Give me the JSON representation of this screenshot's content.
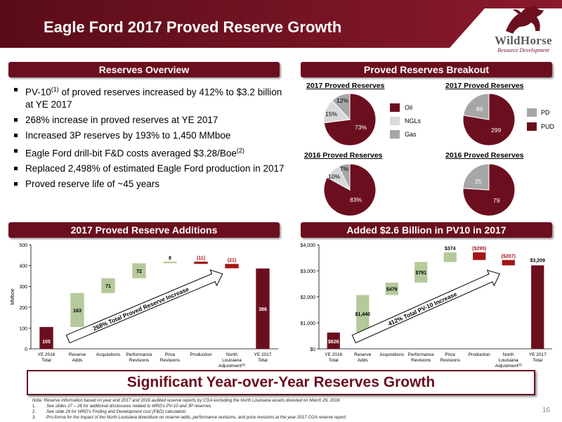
{
  "header": {
    "title": "Eagle Ford 2017 Proved Reserve Growth"
  },
  "logo": {
    "name": "WildHorse",
    "subtitle": "Resource Development"
  },
  "colors": {
    "brand": "#6b0f1e",
    "oil": "#6b0f1e",
    "ngl": "#d9d9d9",
    "gas": "#a6a6a6",
    "pd": "#a6a6a6",
    "pud": "#6b0f1e",
    "positive": "#b5c99a",
    "negative": "#a31515",
    "total": "#6b0f1e"
  },
  "reserves_overview": {
    "heading": "Reserves Overview",
    "bullets": [
      {
        "pre": "PV-10",
        "sup": "(1)",
        "post": " of proved reserves increased by 412% to $3.2 billion at YE 2017"
      },
      {
        "pre": "268% increase in proved reserves at YE 2017",
        "sup": "",
        "post": ""
      },
      {
        "pre": "Increased 3P reserves by 193% to 1,450 MMboe",
        "sup": "",
        "post": ""
      },
      {
        "pre": "Eagle Ford drill-bit F&D costs averaged $3.28/Boe",
        "sup": "(2)",
        "post": ""
      },
      {
        "pre": "Replaced 2,498% of estimated Eagle Ford production in 2017",
        "sup": "",
        "post": ""
      },
      {
        "pre": "Proved reserve life of ~45 years",
        "sup": "",
        "post": ""
      }
    ]
  },
  "breakout": {
    "heading": "Proved Reserves Breakout",
    "pies": [
      {
        "title": "2017 Proved Reserves",
        "slices": [
          {
            "label": "73%",
            "value": 73,
            "color": "#6b0f1e"
          },
          {
            "label": "15%",
            "value": 15,
            "color": "#d9d9d9"
          },
          {
            "label": "12%",
            "value": 12,
            "color": "#a6a6a6"
          }
        ]
      },
      {
        "title": "2016 Proved Reserves",
        "slices": [
          {
            "label": "83%",
            "value": 83,
            "color": "#6b0f1e"
          },
          {
            "label": "10%",
            "value": 10,
            "color": "#d9d9d9"
          },
          {
            "label": "7%",
            "value": 7,
            "color": "#a6a6a6"
          }
        ]
      },
      {
        "title": "2017 Proved Reserves",
        "slices": [
          {
            "label": "299",
            "value": 299,
            "color": "#6b0f1e"
          },
          {
            "label": "86",
            "value": 86,
            "color": "#a6a6a6"
          }
        ]
      },
      {
        "title": "2016 Proved Reserves",
        "slices": [
          {
            "label": "79",
            "value": 79,
            "color": "#6b0f1e"
          },
          {
            "label": "25",
            "value": 25,
            "color": "#a6a6a6"
          }
        ]
      }
    ],
    "legend_left": [
      {
        "label": "Oil",
        "color": "#6b0f1e"
      },
      {
        "label": "NGLs",
        "color": "#d9d9d9"
      },
      {
        "label": "Gas",
        "color": "#a6a6a6"
      }
    ],
    "legend_right": [
      {
        "label": "PD",
        "color": "#a6a6a6"
      },
      {
        "label": "PUD",
        "color": "#6b0f1e"
      }
    ]
  },
  "additions": {
    "heading": "2017 Proved Reserve Additions",
    "arrow_text": "268% Total Proved Reserve Increase"
  },
  "pv10": {
    "heading": "Added $2.6 Billion in PV10 in 2017",
    "arrow_text": "412% Total PV-10 Increase"
  },
  "chart_data": [
    {
      "type": "bar",
      "subtype": "waterfall",
      "ylabel": "MMboe",
      "ylim": [
        0,
        500
      ],
      "yticks": [
        "0",
        "100",
        "200",
        "300",
        "400",
        "500"
      ],
      "categories": [
        "YE 2016 Total",
        "Reserve Adds",
        "Acquisitions",
        "Performance Revisions",
        "Price Revisions",
        "Production",
        "North Louisiana Adjustment",
        "YE 2017 Total"
      ],
      "category_superscripts": [
        "",
        "",
        "",
        "",
        "",
        "",
        "(3)",
        ""
      ],
      "values": [
        105,
        163,
        71,
        72,
        8,
        -11,
        -21,
        386
      ],
      "labels": [
        "105",
        "163",
        "71",
        "72",
        "8",
        "(11)",
        "(21)",
        "386"
      ],
      "kinds": [
        "total",
        "pos",
        "pos",
        "pos",
        "pos",
        "neg",
        "neg",
        "total"
      ]
    },
    {
      "type": "bar",
      "subtype": "waterfall",
      "ylabel": "",
      "ylim": [
        0,
        4000
      ],
      "yticks": [
        "$0",
        "$1,000",
        "$2,000",
        "$3,000",
        "$4,000"
      ],
      "categories": [
        "YE 2016 Total",
        "Reserve Adds",
        "Acquisitions",
        "Performance Revisions",
        "Price Revisions",
        "Production",
        "North Louisiana Adjustment",
        "YE 2017 Total"
      ],
      "category_superscripts": [
        "",
        "",
        "",
        "",
        "",
        "",
        "(3)",
        ""
      ],
      "values": [
        626,
        1440,
        479,
        791,
        374,
        -295,
        -207,
        3209
      ],
      "labels": [
        "$626",
        "$1,440",
        "$479",
        "$791",
        "$374",
        "($295)",
        "($207)",
        "$3,209"
      ],
      "kinds": [
        "total",
        "pos",
        "pos",
        "pos",
        "pos",
        "neg",
        "neg",
        "total"
      ]
    }
  ],
  "banner": {
    "text": "Significant Year-over-Year Reserves Growth"
  },
  "notes": {
    "intro": "Note: Reserve information based on year end 2017 and 2016 audited reserve reports by CGA excluding the North Louisiana assets divested on March 29, 2018.",
    "items": [
      {
        "num": "1.",
        "text": "See slides 27 – 28 for additional disclosures related to WRD's PV-10 and 3P reserves."
      },
      {
        "num": "2.",
        "text": "See slide 29 for WRD's Finding and Development cost (F&D) calculation."
      },
      {
        "num": "3.",
        "text": "Pro-forma for the impact of the North Louisiana divestiture on reserve adds, performance revisions, and price revisions at the year 2017 CGA reserve report."
      }
    ]
  },
  "page_number": "16"
}
